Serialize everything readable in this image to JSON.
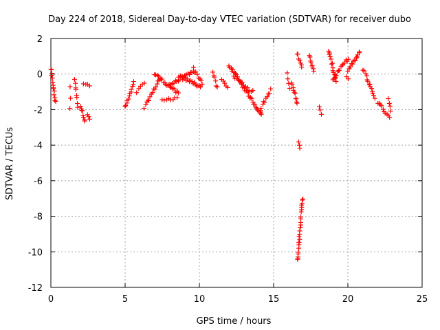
{
  "chart_data": {
    "type": "scatter",
    "title": "Day 224 of 2018, Sidereal Day-to-day VTEC variation (SDTVAR) for receiver dubo",
    "xlabel": "GPS time / hours",
    "ylabel": "SDTVAR / TECUs",
    "xlim": [
      0,
      25
    ],
    "ylim": [
      -12,
      2
    ],
    "xticks": [
      "0",
      "5",
      "10",
      "15",
      "20",
      "25"
    ],
    "yticks": [
      "2",
      "0",
      "-2",
      "-4",
      "-6",
      "-8",
      "-10",
      "-12"
    ],
    "grid": true,
    "marker": "+",
    "color": "#ff0000",
    "segments": [
      {
        "x0": 0.0,
        "x1": 0.3,
        "y0": 0.3,
        "y1": -1.6,
        "n": 14
      },
      {
        "x0": 1.3,
        "x1": 1.3,
        "y0": -0.7,
        "y1": -1.9,
        "n": 3
      },
      {
        "x0": 1.6,
        "x1": 1.8,
        "y0": -0.3,
        "y1": -1.8,
        "n": 8
      },
      {
        "x0": 2.0,
        "x1": 2.3,
        "y0": -1.8,
        "y1": -2.6,
        "n": 8
      },
      {
        "x0": 2.2,
        "x1": 2.6,
        "y0": -0.5,
        "y1": -0.7,
        "n": 4
      },
      {
        "x0": 2.5,
        "x1": 2.6,
        "y0": -2.3,
        "y1": -2.5,
        "n": 3
      },
      {
        "x0": 5.0,
        "x1": 5.6,
        "y0": -1.9,
        "y1": -0.5,
        "n": 12
      },
      {
        "x0": 5.8,
        "x1": 6.3,
        "y0": -1.0,
        "y1": -0.5,
        "n": 5
      },
      {
        "x0": 6.3,
        "x1": 7.3,
        "y0": -1.9,
        "y1": -0.3,
        "n": 14
      },
      {
        "x0": 7.0,
        "x1": 8.6,
        "y0": 0.0,
        "y1": -1.1,
        "n": 20
      },
      {
        "x0": 7.5,
        "x1": 8.5,
        "y0": -1.5,
        "y1": -1.3,
        "n": 8
      },
      {
        "x0": 8.0,
        "x1": 9.6,
        "y0": -0.6,
        "y1": 0.1,
        "n": 18
      },
      {
        "x0": 8.6,
        "x1": 10.1,
        "y0": -0.1,
        "y1": -0.7,
        "n": 18
      },
      {
        "x0": 9.6,
        "x1": 10.2,
        "y0": 0.3,
        "y1": -0.5,
        "n": 8
      },
      {
        "x0": 10.9,
        "x1": 11.2,
        "y0": 0.1,
        "y1": -0.8,
        "n": 6
      },
      {
        "x0": 11.5,
        "x1": 11.9,
        "y0": -0.3,
        "y1": -0.8,
        "n": 5
      },
      {
        "x0": 12.0,
        "x1": 14.2,
        "y0": 0.5,
        "y1": -2.3,
        "n": 34
      },
      {
        "x0": 12.3,
        "x1": 13.6,
        "y0": -0.1,
        "y1": -1.0,
        "n": 12
      },
      {
        "x0": 14.1,
        "x1": 14.8,
        "y0": -2.0,
        "y1": -0.9,
        "n": 10
      },
      {
        "x0": 15.9,
        "x1": 16.1,
        "y0": 0.0,
        "y1": -0.8,
        "n": 4
      },
      {
        "x0": 16.2,
        "x1": 16.6,
        "y0": -0.5,
        "y1": -1.7,
        "n": 10
      },
      {
        "x0": 16.6,
        "x1": 16.9,
        "y0": 1.2,
        "y1": 0.4,
        "n": 7
      },
      {
        "x0": 16.7,
        "x1": 16.75,
        "y0": -3.8,
        "y1": -4.2,
        "n": 3
      },
      {
        "x0": 16.6,
        "x1": 16.95,
        "y0": -10.5,
        "y1": -7.0,
        "n": 26
      },
      {
        "x0": 17.4,
        "x1": 17.7,
        "y0": 1.1,
        "y1": 0.1,
        "n": 8
      },
      {
        "x0": 18.1,
        "x1": 18.2,
        "y0": -1.9,
        "y1": -2.2,
        "n": 3
      },
      {
        "x0": 18.7,
        "x1": 19.2,
        "y0": 1.3,
        "y1": -0.4,
        "n": 14
      },
      {
        "x0": 19.0,
        "x1": 20.0,
        "y0": -0.3,
        "y1": 0.9,
        "n": 14
      },
      {
        "x0": 19.9,
        "x1": 20.0,
        "y0": -0.2,
        "y1": -0.3,
        "n": 2
      },
      {
        "x0": 20.0,
        "x1": 20.8,
        "y0": 0.2,
        "y1": 1.2,
        "n": 14
      },
      {
        "x0": 21.0,
        "x1": 21.3,
        "y0": 0.3,
        "y1": -0.1,
        "n": 4
      },
      {
        "x0": 21.3,
        "x1": 21.8,
        "y0": -0.3,
        "y1": -1.3,
        "n": 10
      },
      {
        "x0": 22.0,
        "x1": 22.8,
        "y0": -1.6,
        "y1": -2.4,
        "n": 10
      },
      {
        "x0": 22.7,
        "x1": 22.9,
        "y0": -1.4,
        "y1": -2.0,
        "n": 4
      }
    ]
  }
}
